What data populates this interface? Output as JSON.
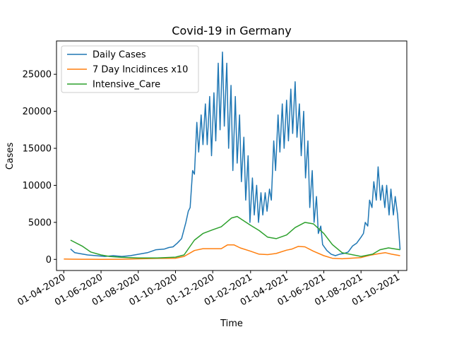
{
  "chart_data": {
    "type": "line",
    "title": "Covid-19 in Germany",
    "xlabel": "Time",
    "ylabel": "Cases",
    "x_type": "date",
    "xlim": [
      "2020-03-20",
      "2021-10-15"
    ],
    "ylim": [
      -1500,
      29500
    ],
    "x_ticks": [
      "2020-04-01",
      "2020-06-01",
      "2020-08-01",
      "2020-10-01",
      "2020-12-01",
      "2021-02-01",
      "2021-04-01",
      "2021-06-01",
      "2021-08-01",
      "2021-10-01"
    ],
    "x_tick_labels": [
      "01-04-2020",
      "01-06-2020",
      "01-08-2020",
      "01-10-2020",
      "01-12-2020",
      "01-02-2021",
      "01-04-2021",
      "01-06-2021",
      "01-08-2021",
      "01-10-2021"
    ],
    "y_ticks": [
      0,
      5000,
      10000,
      15000,
      20000,
      25000
    ],
    "y_tick_labels": [
      "0",
      "5000",
      "10000",
      "15000",
      "20000",
      "25000"
    ],
    "grid": false,
    "legend": "top-left",
    "series": [
      {
        "name": "Daily Cases",
        "color": "#1f77b4",
        "x": [
          "2020-04-12",
          "2020-04-19",
          "2020-04-26",
          "2020-05-10",
          "2020-05-24",
          "2020-06-07",
          "2020-06-21",
          "2020-07-05",
          "2020-07-19",
          "2020-08-02",
          "2020-08-16",
          "2020-08-30",
          "2020-09-13",
          "2020-09-20",
          "2020-09-27",
          "2020-10-04",
          "2020-10-11",
          "2020-10-18",
          "2020-10-22",
          "2020-10-25",
          "2020-10-29",
          "2020-11-01",
          "2020-11-05",
          "2020-11-08",
          "2020-11-12",
          "2020-11-15",
          "2020-11-19",
          "2020-11-22",
          "2020-11-26",
          "2020-11-29",
          "2020-12-03",
          "2020-12-06",
          "2020-12-10",
          "2020-12-13",
          "2020-12-17",
          "2020-12-20",
          "2020-12-24",
          "2020-12-27",
          "2020-12-31",
          "2021-01-03",
          "2021-01-07",
          "2021-01-10",
          "2021-01-14",
          "2021-01-17",
          "2021-01-21",
          "2021-01-24",
          "2021-01-28",
          "2021-01-31",
          "2021-02-04",
          "2021-02-07",
          "2021-02-11",
          "2021-02-14",
          "2021-02-18",
          "2021-02-21",
          "2021-02-25",
          "2021-02-28",
          "2021-03-04",
          "2021-03-07",
          "2021-03-11",
          "2021-03-14",
          "2021-03-18",
          "2021-03-21",
          "2021-03-25",
          "2021-03-28",
          "2021-04-01",
          "2021-04-04",
          "2021-04-08",
          "2021-04-11",
          "2021-04-15",
          "2021-04-18",
          "2021-04-22",
          "2021-04-25",
          "2021-04-29",
          "2021-05-02",
          "2021-05-06",
          "2021-05-09",
          "2021-05-13",
          "2021-05-16",
          "2021-05-20",
          "2021-05-23",
          "2021-05-27",
          "2021-05-30",
          "2021-06-06",
          "2021-06-13",
          "2021-06-20",
          "2021-06-27",
          "2021-07-04",
          "2021-07-11",
          "2021-07-18",
          "2021-07-25",
          "2021-08-01",
          "2021-08-05",
          "2021-08-08",
          "2021-08-12",
          "2021-08-15",
          "2021-08-19",
          "2021-08-22",
          "2021-08-26",
          "2021-08-29",
          "2021-09-02",
          "2021-09-05",
          "2021-09-09",
          "2021-09-12",
          "2021-09-16",
          "2021-09-19",
          "2021-09-23",
          "2021-09-26",
          "2021-09-30",
          "2021-10-04"
        ],
        "y": [
          1400,
          900,
          800,
          600,
          500,
          400,
          500,
          400,
          500,
          700,
          900,
          1300,
          1400,
          1600,
          1700,
          2200,
          2800,
          5000,
          6500,
          7000,
          12000,
          11500,
          18500,
          14500,
          19500,
          15500,
          21000,
          15500,
          22000,
          14000,
          22500,
          16000,
          26500,
          17500,
          28000,
          18000,
          26500,
          15000,
          23500,
          12000,
          22000,
          13000,
          19500,
          10500,
          16500,
          8000,
          14000,
          5000,
          11000,
          6000,
          10000,
          5000,
          9000,
          6000,
          9000,
          6500,
          9500,
          8000,
          16000,
          12000,
          19500,
          14500,
          21000,
          15000,
          21500,
          16000,
          23000,
          17000,
          24000,
          16500,
          21000,
          14000,
          20000,
          11000,
          16000,
          7000,
          12000,
          5000,
          8500,
          3500,
          4500,
          2000,
          1200,
          700,
          500,
          700,
          800,
          1000,
          1800,
          2200,
          3000,
          3500,
          5000,
          4500,
          8000,
          7000,
          10500,
          8000,
          12500,
          8000,
          10000,
          7000,
          10000,
          6000,
          9500,
          6000,
          8500,
          6000,
          1300
        ]
      },
      {
        "name": "7 Day Incidinces x10",
        "color": "#ff7f0e",
        "x": [
          "2020-04-01",
          "2020-04-15",
          "2020-05-01",
          "2020-06-01",
          "2020-07-01",
          "2020-08-01",
          "2020-09-01",
          "2020-10-01",
          "2020-10-15",
          "2020-11-01",
          "2020-11-15",
          "2020-12-01",
          "2020-12-15",
          "2020-12-25",
          "2021-01-05",
          "2021-01-15",
          "2021-02-01",
          "2021-02-15",
          "2021-03-01",
          "2021-03-15",
          "2021-04-01",
          "2021-04-10",
          "2021-04-20",
          "2021-05-01",
          "2021-05-15",
          "2021-06-01",
          "2021-06-15",
          "2021-07-01",
          "2021-08-01",
          "2021-08-15",
          "2021-09-01",
          "2021-09-10",
          "2021-09-20",
          "2021-10-04"
        ],
        "y": [
          50,
          30,
          20,
          10,
          20,
          70,
          130,
          150,
          400,
          1200,
          1450,
          1450,
          1450,
          1950,
          1950,
          1550,
          1100,
          700,
          650,
          800,
          1250,
          1400,
          1750,
          1700,
          1100,
          500,
          150,
          80,
          250,
          550,
          800,
          900,
          700,
          500
        ]
      },
      {
        "name": "Intensive_Care",
        "color": "#2ca02c",
        "x": [
          "2020-04-12",
          "2020-05-01",
          "2020-05-15",
          "2020-06-01",
          "2020-06-15",
          "2020-07-01",
          "2020-08-01",
          "2020-09-01",
          "2020-10-01",
          "2020-10-15",
          "2020-11-01",
          "2020-11-15",
          "2020-12-01",
          "2020-12-15",
          "2021-01-01",
          "2021-01-10",
          "2021-02-01",
          "2021-02-15",
          "2021-03-01",
          "2021-03-15",
          "2021-04-01",
          "2021-04-15",
          "2021-05-01",
          "2021-05-15",
          "2021-06-01",
          "2021-06-15",
          "2021-07-01",
          "2021-08-01",
          "2021-08-20",
          "2021-09-01",
          "2021-09-15",
          "2021-10-04"
        ],
        "y": [
          2600,
          1800,
          1000,
          600,
          400,
          300,
          200,
          200,
          300,
          600,
          2600,
          3500,
          4000,
          4400,
          5600,
          5800,
          4600,
          3900,
          3000,
          2800,
          3300,
          4300,
          5000,
          4800,
          3500,
          2000,
          900,
          400,
          700,
          1300,
          1550,
          1300
        ]
      }
    ]
  }
}
